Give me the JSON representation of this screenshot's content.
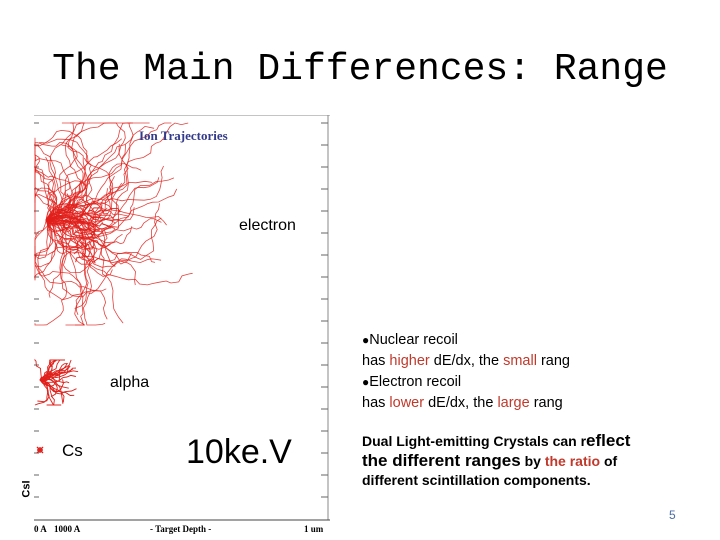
{
  "slide": {
    "title": "The Main Differences: Range",
    "page_number": "5"
  },
  "simulation": {
    "title": "Ion Trajectories",
    "label_electron": "electron",
    "label_alpha": "alpha",
    "label_cs": "Cs",
    "label_energy": "10ke.V",
    "label_material": "CsI",
    "axis": {
      "label_0": "0 A",
      "label_1": "1000 A",
      "label_mid": "- Target Depth -",
      "label_end": "1 um"
    },
    "trace_color": "#e0201b"
  },
  "bullets": {
    "nuclear_head": "Nuclear recoil",
    "nuclear_pre": "has ",
    "nuclear_higher": "higher",
    "nuclear_mid": " dE/dx, the ",
    "nuclear_small": "small",
    "nuclear_post": " rang",
    "electron_head": "Electron recoil",
    "electron_pre": "has ",
    "electron_lower": "lower",
    "electron_mid": " dE/dx, the ",
    "electron_large": "large",
    "electron_post": " rang"
  },
  "dual": {
    "part1": "Dual Light-emitting Crystals can r",
    "part2": "eflect",
    "part3": "the different ranges",
    "part4": " by ",
    "part5": "the ratio",
    "part6": " of",
    "part7": "different scintillation components."
  }
}
